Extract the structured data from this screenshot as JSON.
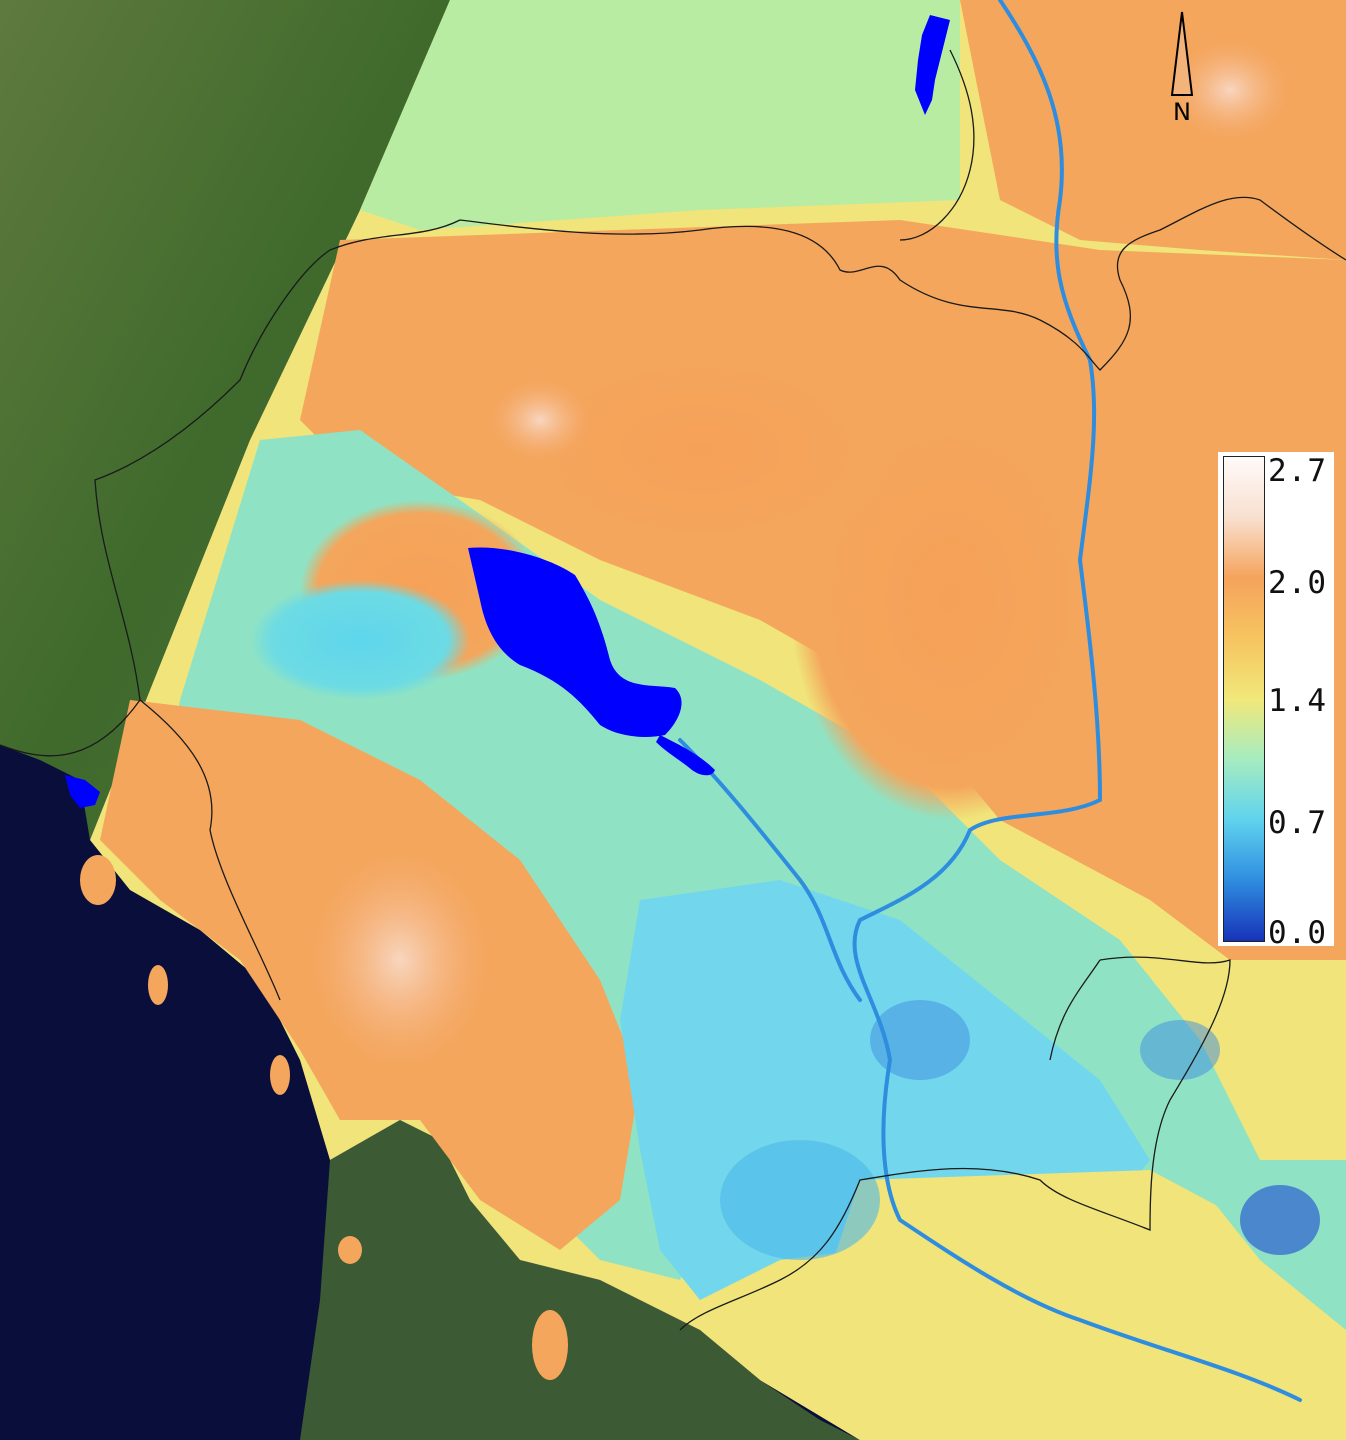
{
  "legend": {
    "ticks": [
      "2.7",
      "2.0",
      "1.4",
      "0.7",
      "0.0"
    ],
    "max": 2.7,
    "min": 0.0,
    "colormap": [
      "#1733b8",
      "#2f8de0",
      "#5fd3ee",
      "#a6ecc0",
      "#f1e87a",
      "#f6c460",
      "#f5a35c",
      "#f8e0cf",
      "#fffafa"
    ]
  },
  "compass": {
    "label": "N"
  },
  "colors": {
    "ocean": "#0a0e3a",
    "land_true_color": "#4a6a35",
    "water_body": "#0000ff",
    "border": "#1a1a1a"
  }
}
